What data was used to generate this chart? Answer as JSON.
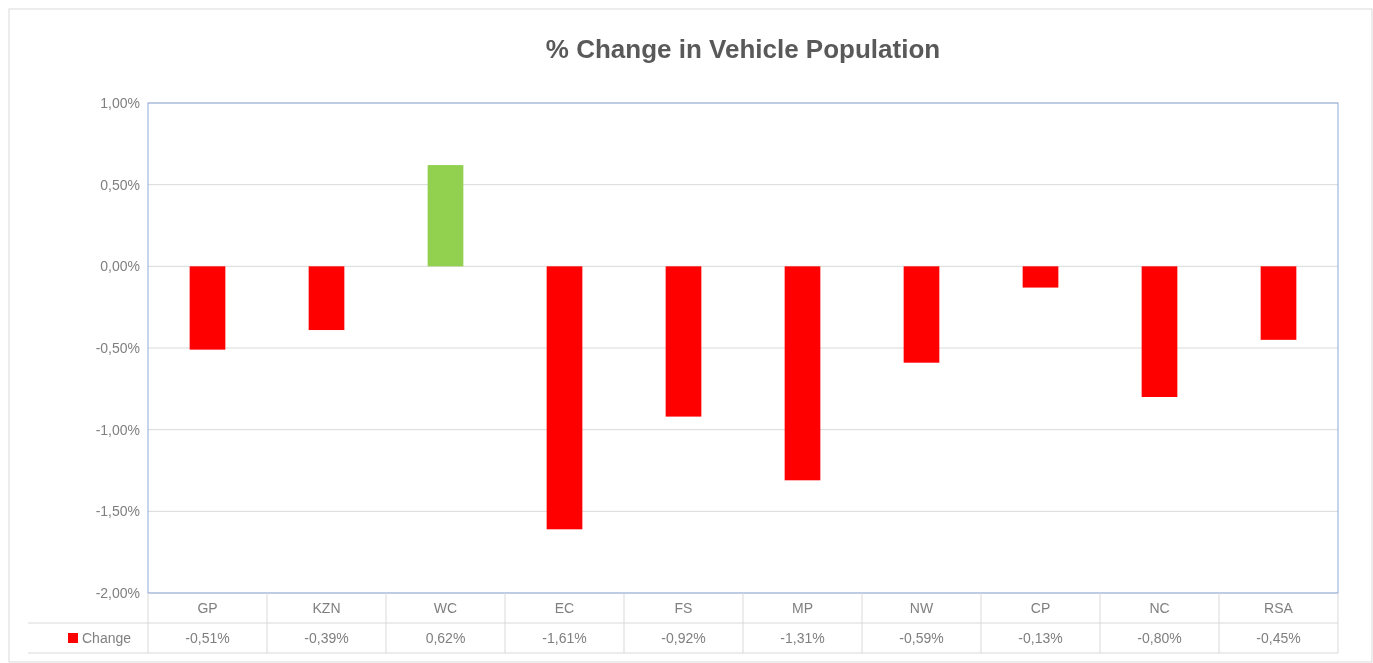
{
  "chart_data": {
    "type": "bar",
    "title": "% Change in Vehicle Population",
    "categories": [
      "GP",
      "KZN",
      "WC",
      "EC",
      "FS",
      "MP",
      "NW",
      "CP",
      "NC",
      "RSA"
    ],
    "series": [
      {
        "name": "Change",
        "color": "#ff0000",
        "colors": [
          "#ff0000",
          "#ff0000",
          "#92d050",
          "#ff0000",
          "#ff0000",
          "#ff0000",
          "#ff0000",
          "#ff0000",
          "#ff0000",
          "#ff0000"
        ],
        "values": [
          -0.51,
          -0.39,
          0.62,
          -1.61,
          -0.92,
          -1.31,
          -0.59,
          -0.13,
          -0.8,
          -0.45
        ],
        "value_labels": [
          "-0,51%",
          "-0,39%",
          "0,62%",
          "-1,61%",
          "-0,92%",
          "-1,31%",
          "-0,59%",
          "-0,13%",
          "-0,80%",
          "-0,45%"
        ]
      }
    ],
    "ylim": [
      -2,
      1
    ],
    "yticks": [
      {
        "value": 1,
        "label": "1,00%"
      },
      {
        "value": 0.5,
        "label": "0,50%"
      },
      {
        "value": 0,
        "label": "0,00%"
      },
      {
        "value": -0.5,
        "label": "-0,50%"
      },
      {
        "value": -1,
        "label": "-1,00%"
      },
      {
        "value": -1.5,
        "label": "-1,50%"
      },
      {
        "value": -2,
        "label": "-2,00%"
      }
    ],
    "grid": "y",
    "legend": "bottom"
  }
}
